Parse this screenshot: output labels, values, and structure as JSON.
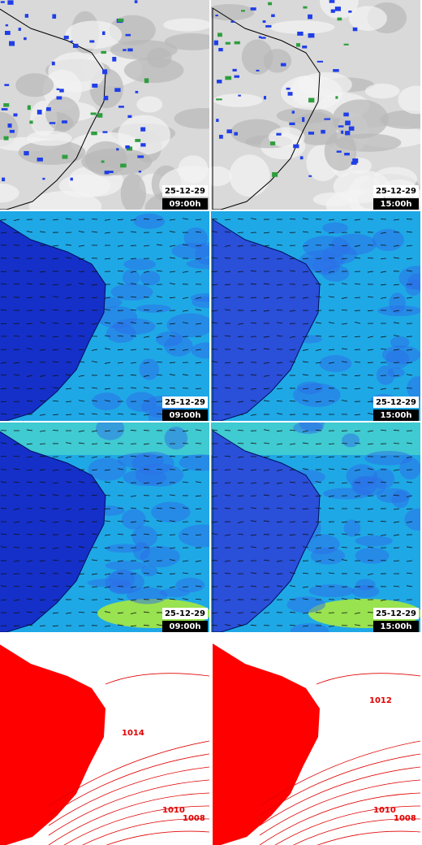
{
  "panels": [
    {
      "date": "25-12-29",
      "time": "09:00h"
    },
    {
      "date": "25-12-29",
      "time": "15:00h"
    },
    {
      "date": "25-12-29",
      "time": "09:00h"
    },
    {
      "date": "25-12-29",
      "time": "15:00h"
    },
    {
      "date": "25-12-29",
      "time": "09:00h"
    },
    {
      "date": "25-12-29",
      "time": "15:00h"
    }
  ],
  "pressure_maps": [
    {
      "contour_labels": [
        "1014",
        "1010",
        "1008"
      ]
    },
    {
      "contour_labels": [
        "1012",
        "1010",
        "1008"
      ]
    }
  ]
}
